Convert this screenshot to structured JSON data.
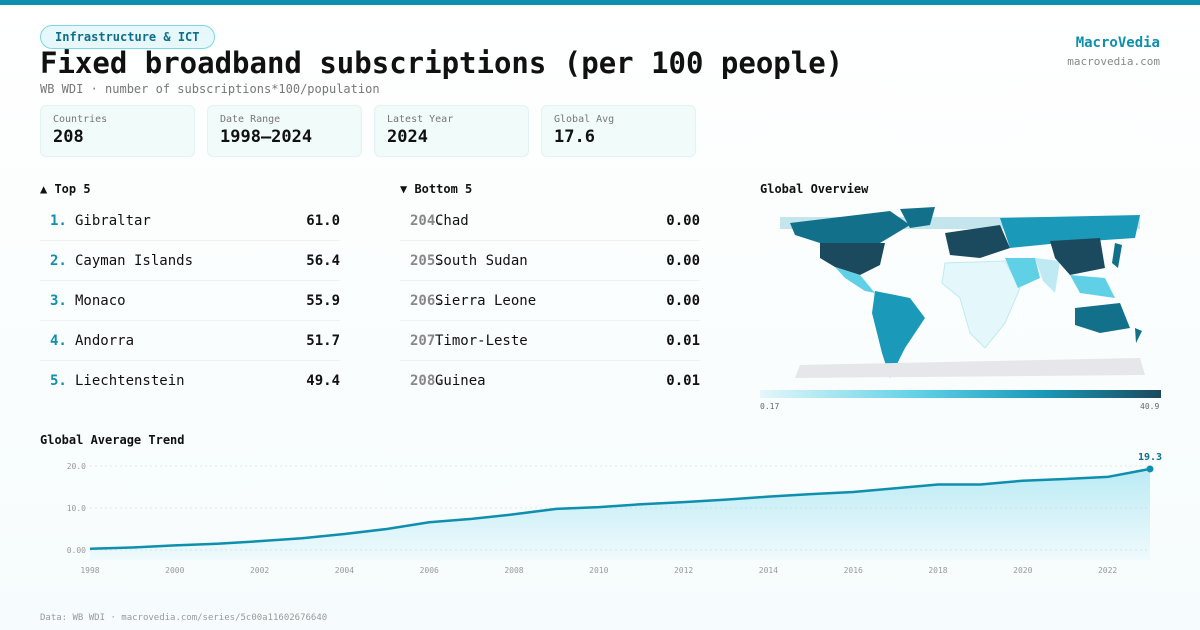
{
  "category_tag": "Infrastructure & ICT",
  "title": "Fixed broadband subscriptions (per 100 people)",
  "subtitle": "WB WDI · number of subscriptions*100/population",
  "brand": {
    "name": "MacroVedia",
    "site": "macrovedia.com"
  },
  "stats": [
    {
      "label": "Countries",
      "value": "208"
    },
    {
      "label": "Date Range",
      "value": "1998–2024"
    },
    {
      "label": "Latest Year",
      "value": "2024"
    },
    {
      "label": "Global Avg",
      "value": "17.6"
    }
  ],
  "top5": {
    "title": "▲ Top 5",
    "items": [
      {
        "rank": "1.",
        "name": "Gibraltar",
        "value": "61.0"
      },
      {
        "rank": "2.",
        "name": "Cayman Islands",
        "value": "56.4"
      },
      {
        "rank": "3.",
        "name": "Monaco",
        "value": "55.9"
      },
      {
        "rank": "4.",
        "name": "Andorra",
        "value": "51.7"
      },
      {
        "rank": "5.",
        "name": "Liechtenstein",
        "value": "49.4"
      }
    ]
  },
  "bottom5": {
    "title": "▼ Bottom 5",
    "items": [
      {
        "rank": "204.",
        "name": "Chad",
        "value": "0.00"
      },
      {
        "rank": "205.",
        "name": "South Sudan",
        "value": "0.00"
      },
      {
        "rank": "206.",
        "name": "Sierra Leone",
        "value": "0.00"
      },
      {
        "rank": "207.",
        "name": "Timor-Leste",
        "value": "0.01"
      },
      {
        "rank": "208.",
        "name": "Guinea",
        "value": "0.01"
      }
    ]
  },
  "map": {
    "title": "Global Overview",
    "legend_min": "0.17",
    "legend_max": "40.9",
    "colors": [
      "#e4f7fb",
      "#5fd0e6",
      "#1a9ab8",
      "#1b4a5e"
    ]
  },
  "chart_data": {
    "type": "area",
    "title": "Global Average Trend",
    "x": [
      1998,
      1999,
      2000,
      2001,
      2002,
      2003,
      2004,
      2005,
      2006,
      2007,
      2008,
      2009,
      2010,
      2011,
      2012,
      2013,
      2014,
      2015,
      2016,
      2017,
      2018,
      2019,
      2020,
      2021,
      2022,
      2023
    ],
    "values": [
      0.3,
      0.6,
      1.1,
      1.5,
      2.1,
      2.8,
      3.8,
      5.0,
      6.6,
      7.4,
      8.5,
      9.8,
      10.2,
      10.9,
      11.4,
      12.0,
      12.7,
      13.3,
      13.8,
      14.7,
      15.6,
      15.6,
      16.5,
      16.9,
      17.4,
      19.3
    ],
    "xticks": [
      "1998",
      "2000",
      "2002",
      "2004",
      "2006",
      "2008",
      "2010",
      "2012",
      "2014",
      "2016",
      "2018",
      "2020",
      "2022"
    ],
    "yticks": [
      "0.00",
      "10.0",
      "20.0"
    ],
    "ylim": [
      0,
      20
    ],
    "last_label": "19.3",
    "grid": true,
    "color": "#0e8fae"
  },
  "footer": "Data: WB WDI · macrovedia.com/series/5c00a11602676640"
}
